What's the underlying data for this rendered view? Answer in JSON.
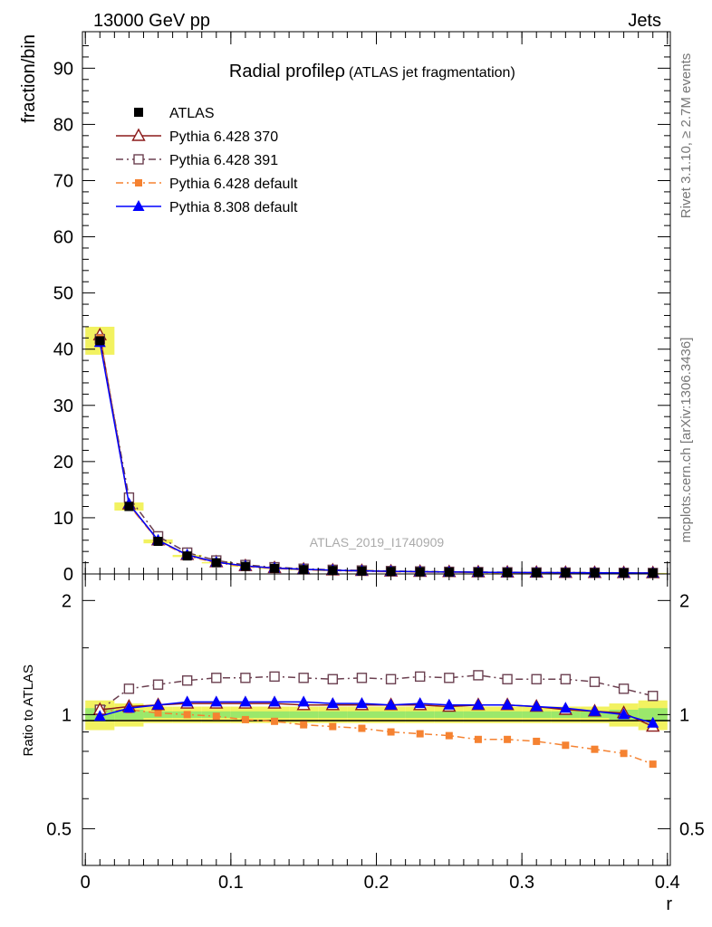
{
  "header": {
    "left": "13000 GeV pp",
    "right": "Jets"
  },
  "side_text": {
    "rivet": "Rivet 3.1.10, ≥ 2.7M events",
    "mcplots": "mcplots.cern.ch [arXiv:1306.3436]"
  },
  "chart_data": [
    {
      "id": "main",
      "type": "line",
      "title_main": "Radial profileρ",
      "title_sub": "(ATLAS jet fragmentation)",
      "watermark": "ATLAS_2019_I1740909",
      "xlabel": "r",
      "ylabel": "fraction/bin",
      "xlim": [
        -0.002,
        0.402
      ],
      "ylim": [
        0,
        96.5
      ],
      "y_ticks": [
        0,
        10,
        20,
        30,
        40,
        50,
        60,
        70,
        80,
        90
      ],
      "x": [
        0.01,
        0.03,
        0.05,
        0.07,
        0.09,
        0.11,
        0.13,
        0.15,
        0.17,
        0.19,
        0.21,
        0.23,
        0.25,
        0.27,
        0.29,
        0.31,
        0.33,
        0.35,
        0.37,
        0.39
      ],
      "series": [
        {
          "name": "ATLAS",
          "color": "#000000",
          "marker": "square-filled",
          "line": "none",
          "values": [
            41.5,
            12.0,
            5.8,
            3.2,
            2.0,
            1.35,
            1.0,
            0.78,
            0.62,
            0.52,
            0.44,
            0.38,
            0.33,
            0.29,
            0.26,
            0.24,
            0.22,
            0.2,
            0.18,
            0.17
          ]
        },
        {
          "name": "Pythia 6.428 370",
          "color": "#8b1a1a",
          "marker": "triangle-open",
          "line": "solid",
          "values": [
            42.5,
            12.4,
            6.0,
            3.4,
            2.1,
            1.42,
            1.05,
            0.82,
            0.65,
            0.55,
            0.46,
            0.4,
            0.35,
            0.31,
            0.27,
            0.25,
            0.22,
            0.2,
            0.18,
            0.16
          ]
        },
        {
          "name": "Pythia 6.428 391",
          "color": "#6b4050",
          "marker": "square-open",
          "line": "dashdot",
          "values": [
            41.8,
            13.6,
            6.7,
            3.8,
            2.4,
            1.6,
            1.2,
            0.93,
            0.74,
            0.62,
            0.52,
            0.45,
            0.39,
            0.34,
            0.3,
            0.27,
            0.25,
            0.23,
            0.2,
            0.18
          ]
        },
        {
          "name": "Pythia 6.428 default",
          "color": "#f58231",
          "marker": "square-filled-small",
          "line": "dashdot",
          "values": [
            42.0,
            12.2,
            5.9,
            3.2,
            1.98,
            1.3,
            0.96,
            0.73,
            0.58,
            0.47,
            0.39,
            0.33,
            0.29,
            0.25,
            0.22,
            0.2,
            0.18,
            0.16,
            0.14,
            0.12
          ]
        },
        {
          "name": "Pythia 8.308 default",
          "color": "#0000ff",
          "marker": "triangle-filled",
          "line": "solid",
          "values": [
            41.2,
            12.5,
            6.0,
            3.4,
            2.1,
            1.42,
            1.05,
            0.82,
            0.66,
            0.55,
            0.46,
            0.4,
            0.35,
            0.31,
            0.27,
            0.25,
            0.22,
            0.2,
            0.18,
            0.16
          ]
        }
      ]
    },
    {
      "id": "ratio",
      "type": "line",
      "ylabel": "Ratio to ATLAS",
      "xlabel": "r",
      "log_y": true,
      "xlim": [
        -0.002,
        0.402
      ],
      "ylim": [
        0.4,
        2.35
      ],
      "y_ticks": [
        0.5,
        1,
        2
      ],
      "x_ticks": [
        0,
        0.1,
        0.2,
        0.3,
        0.4
      ],
      "x": [
        0.01,
        0.03,
        0.05,
        0.07,
        0.09,
        0.11,
        0.13,
        0.15,
        0.17,
        0.19,
        0.21,
        0.23,
        0.25,
        0.27,
        0.29,
        0.31,
        0.33,
        0.35,
        0.37,
        0.39
      ],
      "band_outer": [
        0.09,
        0.07,
        0.05,
        0.05,
        0.05,
        0.05,
        0.05,
        0.05,
        0.05,
        0.05,
        0.05,
        0.05,
        0.05,
        0.05,
        0.05,
        0.05,
        0.05,
        0.05,
        0.07,
        0.09
      ],
      "band_inner": [
        0.04,
        0.03,
        0.02,
        0.02,
        0.02,
        0.02,
        0.02,
        0.02,
        0.02,
        0.02,
        0.02,
        0.02,
        0.02,
        0.02,
        0.02,
        0.02,
        0.02,
        0.02,
        0.03,
        0.04
      ],
      "series": [
        {
          "name": "Pythia 6.428 370",
          "color": "#8b1a1a",
          "marker": "triangle-open",
          "line": "solid",
          "values": [
            1.03,
            1.05,
            1.06,
            1.07,
            1.07,
            1.07,
            1.07,
            1.06,
            1.06,
            1.06,
            1.06,
            1.06,
            1.05,
            1.06,
            1.06,
            1.05,
            1.03,
            1.02,
            1.01,
            0.93
          ]
        },
        {
          "name": "Pythia 6.428 391",
          "color": "#6b4050",
          "marker": "square-open",
          "line": "dashdot",
          "values": [
            1.03,
            1.17,
            1.2,
            1.23,
            1.25,
            1.25,
            1.26,
            1.25,
            1.24,
            1.25,
            1.24,
            1.26,
            1.25,
            1.27,
            1.24,
            1.24,
            1.24,
            1.22,
            1.17,
            1.12
          ]
        },
        {
          "name": "Pythia 6.428 default",
          "color": "#f58231",
          "marker": "square-filled-small",
          "line": "dashdot",
          "values": [
            1.02,
            1.03,
            1.01,
            1.0,
            0.99,
            0.97,
            0.96,
            0.94,
            0.93,
            0.92,
            0.9,
            0.89,
            0.88,
            0.86,
            0.86,
            0.85,
            0.83,
            0.81,
            0.79,
            0.74
          ]
        },
        {
          "name": "Pythia 8.308 default",
          "color": "#0000ff",
          "marker": "triangle-filled",
          "line": "solid",
          "values": [
            0.99,
            1.04,
            1.06,
            1.08,
            1.08,
            1.08,
            1.08,
            1.08,
            1.07,
            1.07,
            1.06,
            1.07,
            1.06,
            1.06,
            1.06,
            1.05,
            1.04,
            1.02,
            1.0,
            0.95
          ]
        }
      ]
    }
  ]
}
